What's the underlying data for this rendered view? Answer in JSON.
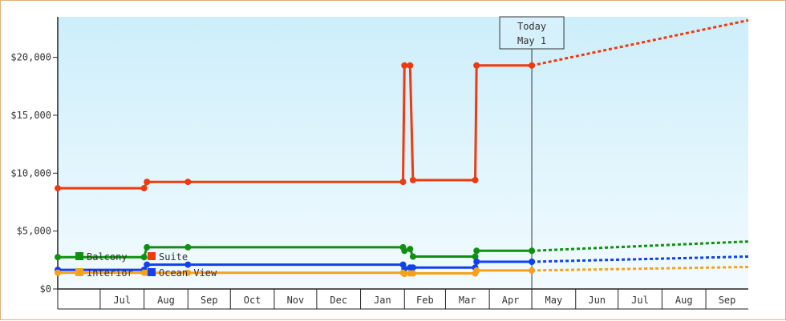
{
  "chart_data": {
    "type": "line",
    "title": "",
    "xlabel": "",
    "ylabel": "",
    "ylim": [
      0,
      23500
    ],
    "y_ticks": [
      {
        "value": 0,
        "label": "$0"
      },
      {
        "value": 5000,
        "label": "$5,000"
      },
      {
        "value": 10000,
        "label": "$10,000"
      },
      {
        "value": 15000,
        "label": "$15,000"
      },
      {
        "value": 20000,
        "label": "$20,000"
      }
    ],
    "x_range": [
      "2019-06-01",
      "2020-10-01"
    ],
    "month_labels": [
      {
        "date": "2019-07-01",
        "label": "Jul"
      },
      {
        "date": "2019-08-01",
        "label": "Aug"
      },
      {
        "date": "2019-09-01",
        "label": "Sep"
      },
      {
        "date": "2019-10-01",
        "label": "Oct"
      },
      {
        "date": "2019-11-01",
        "label": "Nov"
      },
      {
        "date": "2019-12-01",
        "label": "Dec"
      },
      {
        "date": "2020-01-01",
        "label": "Jan"
      },
      {
        "date": "2020-02-01",
        "label": "Feb"
      },
      {
        "date": "2020-03-01",
        "label": "Mar"
      },
      {
        "date": "2020-04-01",
        "label": "Apr"
      },
      {
        "date": "2020-05-01",
        "label": "May"
      },
      {
        "date": "2020-06-01",
        "label": "Jun"
      },
      {
        "date": "2020-07-01",
        "label": "Jul"
      },
      {
        "date": "2020-08-01",
        "label": "Aug"
      },
      {
        "date": "2020-09-01",
        "label": "Sep"
      }
    ],
    "today": {
      "date": "2020-05-01",
      "line1": "Today",
      "line2": "May 1"
    },
    "grid": false,
    "legend_position": "bottom-left",
    "series": [
      {
        "name": "Suite",
        "color": "#ee3a10",
        "points": [
          {
            "date": "2019-06-01",
            "value": 8700
          },
          {
            "date": "2019-08-01",
            "value": 8700
          },
          {
            "date": "2019-08-03",
            "value": 9250
          },
          {
            "date": "2019-09-01",
            "value": 9250
          },
          {
            "date": "2020-01-31",
            "value": 9250
          },
          {
            "date": "2020-02-01",
            "value": 19300
          },
          {
            "date": "2020-02-05",
            "value": 19300
          },
          {
            "date": "2020-02-07",
            "value": 9400
          },
          {
            "date": "2020-03-22",
            "value": 9400
          },
          {
            "date": "2020-03-23",
            "value": 19300
          },
          {
            "date": "2020-05-01",
            "value": 19300
          }
        ],
        "forecast": [
          {
            "date": "2020-05-01",
            "value": 19300
          },
          {
            "date": "2020-10-01",
            "value": 23200
          }
        ]
      },
      {
        "name": "Balcony",
        "color": "#109010",
        "points": [
          {
            "date": "2019-06-01",
            "value": 2750
          },
          {
            "date": "2019-08-01",
            "value": 2750
          },
          {
            "date": "2019-08-03",
            "value": 3600
          },
          {
            "date": "2019-09-01",
            "value": 3600
          },
          {
            "date": "2020-01-31",
            "value": 3600
          },
          {
            "date": "2020-02-01",
            "value": 3300
          },
          {
            "date": "2020-02-05",
            "value": 3450
          },
          {
            "date": "2020-02-07",
            "value": 2800
          },
          {
            "date": "2020-03-22",
            "value": 2800
          },
          {
            "date": "2020-03-23",
            "value": 3300
          },
          {
            "date": "2020-05-01",
            "value": 3300
          }
        ],
        "forecast": [
          {
            "date": "2020-05-01",
            "value": 3300
          },
          {
            "date": "2020-10-01",
            "value": 4100
          }
        ]
      },
      {
        "name": "Ocean View",
        "color": "#1040f0",
        "points": [
          {
            "date": "2019-06-01",
            "value": 1650
          },
          {
            "date": "2019-08-01",
            "value": 1650
          },
          {
            "date": "2019-08-03",
            "value": 2100
          },
          {
            "date": "2019-09-01",
            "value": 2100
          },
          {
            "date": "2020-01-31",
            "value": 2100
          },
          {
            "date": "2020-02-01",
            "value": 1750
          },
          {
            "date": "2020-02-05",
            "value": 1850
          },
          {
            "date": "2020-02-07",
            "value": 1850
          },
          {
            "date": "2020-03-22",
            "value": 1850
          },
          {
            "date": "2020-03-23",
            "value": 2350
          },
          {
            "date": "2020-05-01",
            "value": 2350
          }
        ],
        "forecast": [
          {
            "date": "2020-05-01",
            "value": 2350
          },
          {
            "date": "2020-10-01",
            "value": 2800
          }
        ]
      },
      {
        "name": "Interior",
        "color": "#f7a11a",
        "points": [
          {
            "date": "2019-06-01",
            "value": 1400
          },
          {
            "date": "2019-08-01",
            "value": 1400
          },
          {
            "date": "2019-08-03",
            "value": 1400
          },
          {
            "date": "2019-09-01",
            "value": 1400
          },
          {
            "date": "2020-01-31",
            "value": 1400
          },
          {
            "date": "2020-02-01",
            "value": 1300
          },
          {
            "date": "2020-02-05",
            "value": 1350
          },
          {
            "date": "2020-02-07",
            "value": 1350
          },
          {
            "date": "2020-03-22",
            "value": 1350
          },
          {
            "date": "2020-03-23",
            "value": 1600
          },
          {
            "date": "2020-05-01",
            "value": 1600
          }
        ],
        "forecast": [
          {
            "date": "2020-05-01",
            "value": 1600
          },
          {
            "date": "2020-10-01",
            "value": 1900
          }
        ]
      }
    ],
    "markers": {
      "Suite": [
        "2019-06-01",
        "2019-08-01",
        "2019-08-03",
        "2019-09-01",
        "2020-01-31",
        "2020-02-01",
        "2020-02-05",
        "2020-02-07",
        "2020-03-22",
        "2020-03-23",
        "2020-05-01"
      ],
      "Balcony": [
        "2019-06-01",
        "2019-08-01",
        "2019-08-03",
        "2019-09-01",
        "2020-01-31",
        "2020-02-01",
        "2020-02-05",
        "2020-02-07",
        "2020-03-22",
        "2020-03-23",
        "2020-05-01"
      ],
      "Ocean View": [
        "2019-06-01",
        "2019-08-01",
        "2019-08-03",
        "2019-09-01",
        "2020-01-31",
        "2020-02-01",
        "2020-02-05",
        "2020-02-07",
        "2020-03-22",
        "2020-03-23",
        "2020-05-01"
      ],
      "Interior": [
        "2019-06-01",
        "2019-08-01",
        "2019-08-03",
        "2019-09-01",
        "2020-01-31",
        "2020-02-01",
        "2020-02-05",
        "2020-02-07",
        "2020-03-22",
        "2020-03-23",
        "2020-05-01"
      ]
    },
    "legend": [
      {
        "name": "Balcony",
        "color": "#109010"
      },
      {
        "name": "Suite",
        "color": "#ee3a10"
      },
      {
        "name": "Interior",
        "color": "#f7a11a"
      },
      {
        "name": "Ocean View",
        "color": "#1040f0"
      }
    ]
  }
}
